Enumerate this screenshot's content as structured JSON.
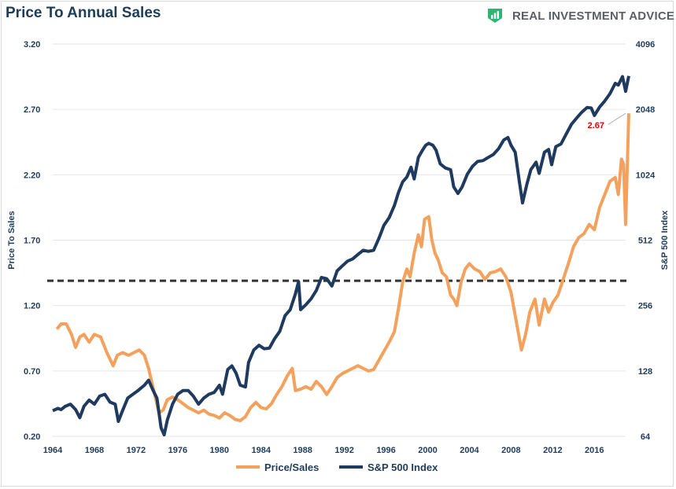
{
  "title": "Price To Annual Sales",
  "brand": {
    "name": "REAL INVESTMENT ADVICE",
    "icon": "chart-logo-icon",
    "color": "#2bb673"
  },
  "chart_data": {
    "type": "line",
    "title": "Price To Annual Sales",
    "ylabel": "Price To Sales",
    "y2label": "S&P 500 Index",
    "xlim": [
      1964,
      2019
    ],
    "ylim": [
      0.2,
      3.2
    ],
    "y2lim": [
      64,
      4096
    ],
    "y2scale": "log2",
    "x_ticks": [
      "1964",
      "1968",
      "1972",
      "1976",
      "1980",
      "1984",
      "1988",
      "1992",
      "1996",
      "2000",
      "2004",
      "2008",
      "2012",
      "2016"
    ],
    "y_ticks": [
      "0.20",
      "0.70",
      "1.20",
      "1.70",
      "2.20",
      "2.70",
      "3.20"
    ],
    "y2_ticks": [
      "64",
      "128",
      "256",
      "512",
      "1024",
      "2048",
      "4096"
    ],
    "legend": "bottom-center",
    "grid": "horizontal",
    "annotation": {
      "text": "2.67",
      "x": 2019.0,
      "y": 2.67,
      "color": "#e00000"
    },
    "reference_line": {
      "y": 1.39,
      "style": "dashed",
      "color": "#333333"
    },
    "series": [
      {
        "name": "Price/Sales",
        "axis": "left",
        "color": "#f4a15d",
        "points": [
          [
            1964.4,
            1.02
          ],
          [
            1964.8,
            1.06
          ],
          [
            1965.3,
            1.06
          ],
          [
            1965.8,
            0.98
          ],
          [
            1966.2,
            0.88
          ],
          [
            1966.6,
            0.96
          ],
          [
            1967.0,
            0.98
          ],
          [
            1967.5,
            0.92
          ],
          [
            1968.0,
            0.98
          ],
          [
            1968.6,
            0.96
          ],
          [
            1969.2,
            0.84
          ],
          [
            1969.8,
            0.74
          ],
          [
            1970.2,
            0.82
          ],
          [
            1970.7,
            0.84
          ],
          [
            1971.3,
            0.82
          ],
          [
            1971.8,
            0.84
          ],
          [
            1972.3,
            0.86
          ],
          [
            1972.8,
            0.82
          ],
          [
            1973.2,
            0.72
          ],
          [
            1973.7,
            0.55
          ],
          [
            1974.2,
            0.38
          ],
          [
            1974.6,
            0.4
          ],
          [
            1975.0,
            0.48
          ],
          [
            1975.5,
            0.5
          ],
          [
            1976.0,
            0.48
          ],
          [
            1976.5,
            0.45
          ],
          [
            1977.0,
            0.42
          ],
          [
            1977.5,
            0.4
          ],
          [
            1978.0,
            0.38
          ],
          [
            1978.5,
            0.4
          ],
          [
            1979.0,
            0.37
          ],
          [
            1979.5,
            0.36
          ],
          [
            1980.0,
            0.34
          ],
          [
            1980.5,
            0.38
          ],
          [
            1981.0,
            0.36
          ],
          [
            1981.5,
            0.33
          ],
          [
            1982.0,
            0.32
          ],
          [
            1982.5,
            0.35
          ],
          [
            1983.0,
            0.42
          ],
          [
            1983.5,
            0.46
          ],
          [
            1984.0,
            0.42
          ],
          [
            1984.5,
            0.41
          ],
          [
            1985.0,
            0.45
          ],
          [
            1985.5,
            0.52
          ],
          [
            1986.0,
            0.58
          ],
          [
            1986.5,
            0.66
          ],
          [
            1987.0,
            0.72
          ],
          [
            1987.3,
            0.55
          ],
          [
            1987.8,
            0.56
          ],
          [
            1988.3,
            0.58
          ],
          [
            1988.8,
            0.56
          ],
          [
            1989.3,
            0.62
          ],
          [
            1989.8,
            0.58
          ],
          [
            1990.3,
            0.52
          ],
          [
            1990.8,
            0.58
          ],
          [
            1991.3,
            0.65
          ],
          [
            1991.8,
            0.68
          ],
          [
            1992.3,
            0.7
          ],
          [
            1992.8,
            0.72
          ],
          [
            1993.3,
            0.74
          ],
          [
            1993.8,
            0.72
          ],
          [
            1994.3,
            0.7
          ],
          [
            1994.8,
            0.71
          ],
          [
            1995.3,
            0.78
          ],
          [
            1995.8,
            0.85
          ],
          [
            1996.3,
            0.92
          ],
          [
            1996.8,
            1.0
          ],
          [
            1997.2,
            1.18
          ],
          [
            1997.6,
            1.38
          ],
          [
            1998.0,
            1.48
          ],
          [
            1998.3,
            1.42
          ],
          [
            1998.7,
            1.6
          ],
          [
            1999.1,
            1.74
          ],
          [
            1999.4,
            1.65
          ],
          [
            1999.7,
            1.86
          ],
          [
            2000.1,
            1.88
          ],
          [
            2000.4,
            1.7
          ],
          [
            2000.7,
            1.6
          ],
          [
            2001.0,
            1.55
          ],
          [
            2001.4,
            1.45
          ],
          [
            2001.8,
            1.42
          ],
          [
            2002.2,
            1.28
          ],
          [
            2002.5,
            1.25
          ],
          [
            2002.8,
            1.2
          ],
          [
            2003.2,
            1.38
          ],
          [
            2003.6,
            1.48
          ],
          [
            2004.0,
            1.52
          ],
          [
            2004.5,
            1.48
          ],
          [
            2005.0,
            1.46
          ],
          [
            2005.5,
            1.4
          ],
          [
            2006.0,
            1.45
          ],
          [
            2006.5,
            1.46
          ],
          [
            2007.0,
            1.48
          ],
          [
            2007.5,
            1.42
          ],
          [
            2008.0,
            1.3
          ],
          [
            2008.5,
            1.08
          ],
          [
            2009.0,
            0.86
          ],
          [
            2009.4,
            0.98
          ],
          [
            2009.8,
            1.15
          ],
          [
            2010.3,
            1.25
          ],
          [
            2010.7,
            1.05
          ],
          [
            2011.2,
            1.25
          ],
          [
            2011.6,
            1.15
          ],
          [
            2012.0,
            1.22
          ],
          [
            2012.5,
            1.28
          ],
          [
            2013.0,
            1.4
          ],
          [
            2013.5,
            1.52
          ],
          [
            2014.0,
            1.65
          ],
          [
            2014.5,
            1.72
          ],
          [
            2015.0,
            1.75
          ],
          [
            2015.5,
            1.82
          ],
          [
            2016.0,
            1.78
          ],
          [
            2016.5,
            1.95
          ],
          [
            2017.0,
            2.05
          ],
          [
            2017.5,
            2.15
          ],
          [
            2018.0,
            2.18
          ],
          [
            2018.3,
            2.05
          ],
          [
            2018.6,
            2.32
          ],
          [
            2018.8,
            2.28
          ],
          [
            2019.0,
            1.82
          ],
          [
            2019.3,
            2.67
          ]
        ]
      },
      {
        "name": "S&P 500 Index",
        "axis": "right",
        "color": "#1f3a5f",
        "points": [
          [
            1964.0,
            84
          ],
          [
            1964.5,
            86
          ],
          [
            1964.8,
            85
          ],
          [
            1965.2,
            88
          ],
          [
            1965.7,
            90
          ],
          [
            1966.2,
            85
          ],
          [
            1966.6,
            78
          ],
          [
            1967.0,
            88
          ],
          [
            1967.5,
            94
          ],
          [
            1968.0,
            90
          ],
          [
            1968.5,
            98
          ],
          [
            1969.0,
            100
          ],
          [
            1969.5,
            92
          ],
          [
            1970.0,
            90
          ],
          [
            1970.3,
            75
          ],
          [
            1970.7,
            84
          ],
          [
            1971.2,
            96
          ],
          [
            1971.7,
            100
          ],
          [
            1972.2,
            104
          ],
          [
            1972.8,
            110
          ],
          [
            1973.2,
            116
          ],
          [
            1973.6,
            105
          ],
          [
            1974.0,
            96
          ],
          [
            1974.4,
            70
          ],
          [
            1974.7,
            65
          ],
          [
            1975.0,
            76
          ],
          [
            1975.5,
            90
          ],
          [
            1976.0,
            100
          ],
          [
            1976.5,
            104
          ],
          [
            1977.0,
            104
          ],
          [
            1977.5,
            98
          ],
          [
            1978.0,
            90
          ],
          [
            1978.5,
            96
          ],
          [
            1979.0,
            100
          ],
          [
            1979.5,
            102
          ],
          [
            1980.0,
            110
          ],
          [
            1980.3,
            100
          ],
          [
            1980.8,
            130
          ],
          [
            1981.2,
            135
          ],
          [
            1981.6,
            125
          ],
          [
            1982.0,
            110
          ],
          [
            1982.5,
            108
          ],
          [
            1982.8,
            140
          ],
          [
            1983.3,
            160
          ],
          [
            1983.8,
            168
          ],
          [
            1984.3,
            162
          ],
          [
            1984.8,
            163
          ],
          [
            1985.3,
            180
          ],
          [
            1985.8,
            195
          ],
          [
            1986.3,
            230
          ],
          [
            1986.8,
            245
          ],
          [
            1987.3,
            290
          ],
          [
            1987.6,
            330
          ],
          [
            1987.8,
            245
          ],
          [
            1988.3,
            258
          ],
          [
            1988.8,
            275
          ],
          [
            1989.3,
            300
          ],
          [
            1989.8,
            345
          ],
          [
            1990.3,
            340
          ],
          [
            1990.8,
            315
          ],
          [
            1991.3,
            370
          ],
          [
            1991.8,
            390
          ],
          [
            1992.3,
            410
          ],
          [
            1992.8,
            420
          ],
          [
            1993.3,
            440
          ],
          [
            1993.8,
            460
          ],
          [
            1994.3,
            455
          ],
          [
            1994.8,
            460
          ],
          [
            1995.3,
            520
          ],
          [
            1995.8,
            600
          ],
          [
            1996.3,
            650
          ],
          [
            1996.8,
            740
          ],
          [
            1997.2,
            850
          ],
          [
            1997.6,
            950
          ],
          [
            1998.0,
            1000
          ],
          [
            1998.4,
            1110
          ],
          [
            1998.7,
            980
          ],
          [
            1999.1,
            1230
          ],
          [
            1999.5,
            1330
          ],
          [
            1999.8,
            1400
          ],
          [
            2000.1,
            1430
          ],
          [
            2000.5,
            1400
          ],
          [
            2000.8,
            1330
          ],
          [
            2001.2,
            1150
          ],
          [
            2001.7,
            1100
          ],
          [
            2002.2,
            1080
          ],
          [
            2002.5,
            900
          ],
          [
            2002.9,
            840
          ],
          [
            2003.3,
            900
          ],
          [
            2003.8,
            1030
          ],
          [
            2004.3,
            1120
          ],
          [
            2004.8,
            1180
          ],
          [
            2005.3,
            1190
          ],
          [
            2005.8,
            1230
          ],
          [
            2006.3,
            1270
          ],
          [
            2006.8,
            1350
          ],
          [
            2007.3,
            1480
          ],
          [
            2007.7,
            1520
          ],
          [
            2008.0,
            1400
          ],
          [
            2008.4,
            1300
          ],
          [
            2008.8,
            950
          ],
          [
            2009.1,
            760
          ],
          [
            2009.5,
            920
          ],
          [
            2009.9,
            1080
          ],
          [
            2010.4,
            1170
          ],
          [
            2010.7,
            1040
          ],
          [
            2011.2,
            1300
          ],
          [
            2011.6,
            1340
          ],
          [
            2011.9,
            1140
          ],
          [
            2012.3,
            1380
          ],
          [
            2012.8,
            1420
          ],
          [
            2013.3,
            1580
          ],
          [
            2013.8,
            1750
          ],
          [
            2014.3,
            1870
          ],
          [
            2014.8,
            1990
          ],
          [
            2015.3,
            2090
          ],
          [
            2015.7,
            2080
          ],
          [
            2016.0,
            1920
          ],
          [
            2016.5,
            2100
          ],
          [
            2017.0,
            2240
          ],
          [
            2017.5,
            2420
          ],
          [
            2018.0,
            2700
          ],
          [
            2018.3,
            2650
          ],
          [
            2018.7,
            2900
          ],
          [
            2019.0,
            2480
          ],
          [
            2019.3,
            2920
          ]
        ]
      }
    ]
  }
}
